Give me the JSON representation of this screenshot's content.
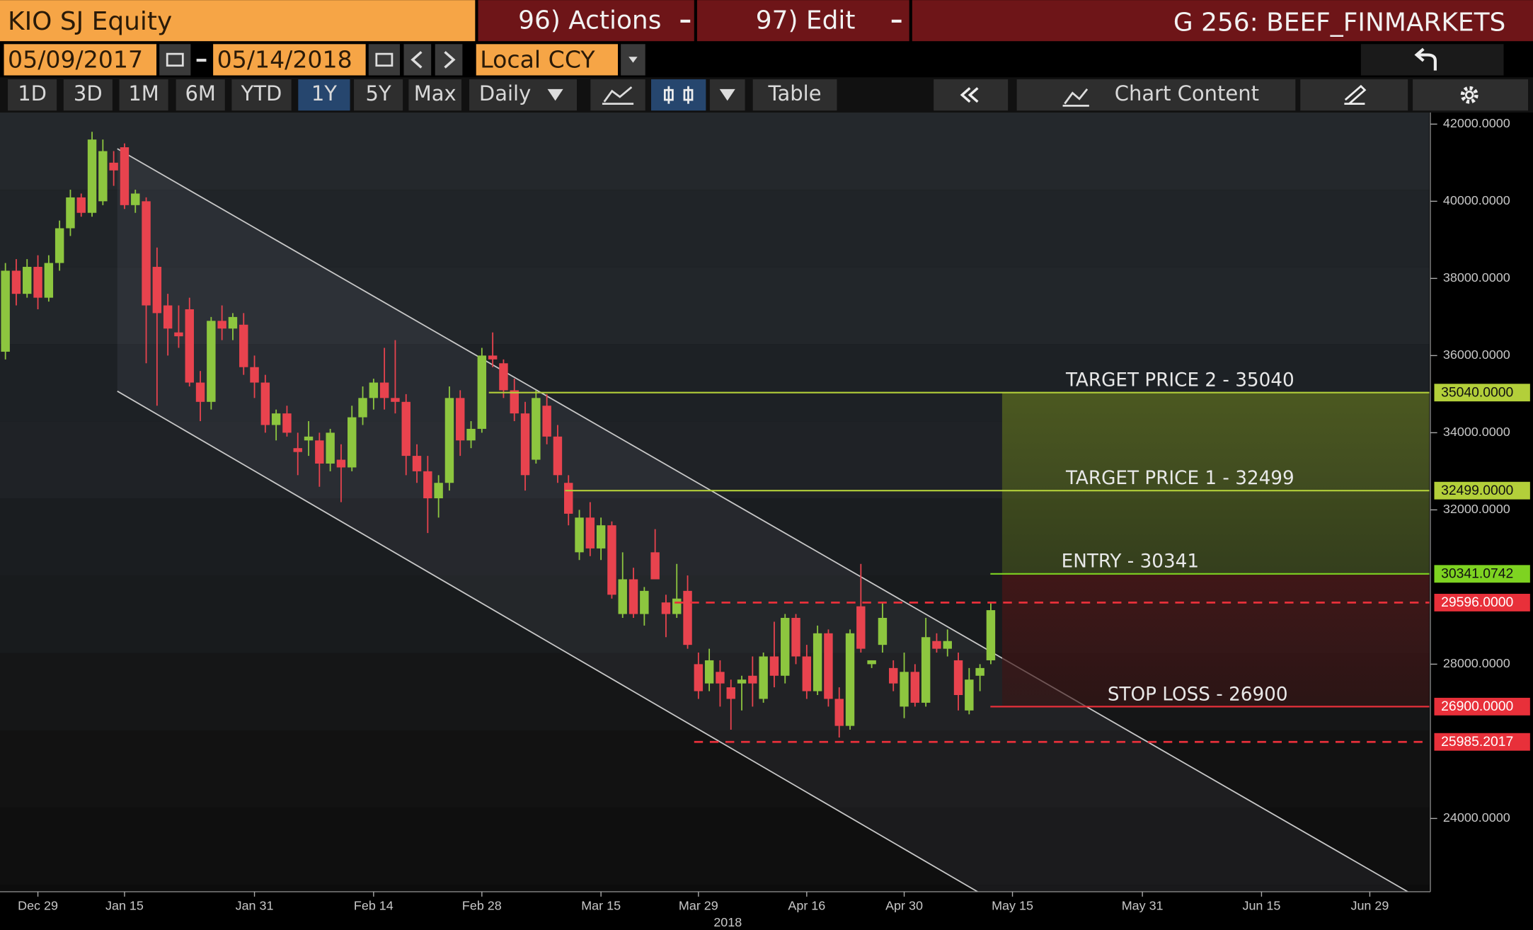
{
  "toolbar": {
    "security": "KIO SJ Equity",
    "actions": "96) Actions",
    "edit": "97) Edit",
    "page": "G 256: BEEF_FINMARKETS",
    "start_date": "05/09/2017",
    "end_date": "05/14/2018",
    "currency": "Local CCY",
    "periods": [
      "1D",
      "3D",
      "1M",
      "6M",
      "YTD",
      "1Y",
      "5Y",
      "Max"
    ],
    "selected_period": "1Y",
    "frequency": "Daily",
    "table": "Table",
    "chart_content": "Chart Content"
  },
  "chart_data": {
    "type": "candlestick",
    "categories": [
      null,
      null,
      null,
      "Dec 29",
      null,
      null,
      null,
      null,
      null,
      null,
      null,
      "Jan 15",
      null,
      null,
      null,
      null,
      null,
      null,
      null,
      null,
      null,
      null,
      null,
      "Jan 31",
      null,
      null,
      null,
      null,
      null,
      null,
      null,
      null,
      null,
      null,
      "Feb 14",
      null,
      null,
      null,
      null,
      null,
      null,
      null,
      null,
      null,
      "Feb 28",
      null,
      null,
      null,
      null,
      null,
      null,
      null,
      null,
      null,
      null,
      "Mar 15",
      null,
      null,
      null,
      null,
      null,
      null,
      null,
      null,
      "Mar 29",
      null,
      null,
      null,
      null,
      null,
      null,
      null,
      null,
      null,
      "Apr 16",
      null,
      null,
      null,
      null,
      null,
      null,
      null,
      null,
      "Apr 30",
      null,
      null,
      null,
      null,
      null,
      null,
      null,
      null,
      null,
      "May 15",
      null,
      null,
      null,
      null,
      null,
      null,
      null,
      null,
      null,
      null,
      null,
      "May 31",
      null,
      null,
      null,
      null,
      null,
      null,
      null,
      null,
      null,
      null,
      "Jun 15",
      null,
      null,
      null,
      null,
      null,
      null,
      null,
      null,
      null,
      "Jun 29",
      null,
      null,
      null,
      null,
      null
    ],
    "year_label": "2018",
    "open": [
      36100,
      38200,
      37600,
      38300,
      37500,
      38400,
      39300,
      40100,
      39700,
      40000,
      41000,
      41400,
      39900,
      40000,
      38300,
      37300,
      36600,
      37200,
      35300,
      34800,
      36900,
      36700,
      36800,
      35700,
      35300,
      34200,
      34500,
      33600,
      33800,
      33800,
      33200,
      33300,
      33100,
      34400,
      34900,
      35300,
      34900,
      34800,
      33400,
      33000,
      32300,
      32700,
      34900,
      33800,
      34100,
      36000,
      35800,
      35100,
      34500,
      33300,
      34700,
      33900,
      32700,
      30900,
      31800,
      31000,
      31600,
      29300,
      30200,
      29300,
      30900,
      29600,
      29300,
      29900,
      28000,
      27500,
      27800,
      27400,
      27500,
      27700,
      27100,
      28200,
      27700,
      29200,
      28200,
      27300,
      28800,
      27100,
      26400,
      29500,
      28000,
      28500,
      27900,
      26900,
      27800,
      27000,
      28600,
      28400,
      28100,
      26800,
      27700,
      28100,
      null,
      null,
      null,
      null,
      null,
      null,
      null,
      null,
      null,
      null,
      null,
      null,
      null,
      null,
      null,
      null,
      null,
      null,
      null,
      null,
      null,
      null,
      null,
      null,
      null,
      null,
      null,
      null,
      null,
      null,
      null,
      null,
      null,
      null,
      null,
      null,
      null,
      null,
      null,
      null
    ],
    "high": [
      38400,
      38500,
      38500,
      38600,
      38600,
      39500,
      40300,
      40200,
      41800,
      41600,
      41300,
      41500,
      40300,
      40100,
      38800,
      37600,
      37300,
      37500,
      35600,
      37000,
      37300,
      37100,
      37100,
      36000,
      35500,
      34600,
      34700,
      34000,
      34300,
      34000,
      34100,
      33700,
      34700,
      35200,
      35400,
      36200,
      36400,
      35000,
      33700,
      33400,
      32900,
      35200,
      35100,
      34300,
      36200,
      36600,
      35900,
      35400,
      34800,
      35100,
      35000,
      34200,
      32900,
      32000,
      32200,
      31800,
      31700,
      30900,
      30500,
      30000,
      31500,
      29800,
      30600,
      30300,
      28300,
      28400,
      28100,
      27600,
      27700,
      28200,
      28300,
      29100,
      29300,
      29300,
      28500,
      29000,
      28900,
      27400,
      28900,
      30600,
      28100,
      29600,
      28100,
      28300,
      28000,
      29200,
      28800,
      28900,
      28300,
      27900,
      28000,
      29600,
      null,
      null,
      null,
      null,
      null,
      null,
      null,
      null,
      null,
      null,
      null,
      null,
      null,
      null,
      null,
      null,
      null,
      null,
      null,
      null,
      null,
      null,
      null,
      null,
      null,
      null,
      null,
      null,
      null,
      null,
      null,
      null,
      null,
      null,
      null,
      null,
      null,
      null,
      null,
      null
    ],
    "low": [
      35900,
      37300,
      37500,
      37200,
      37400,
      38200,
      39100,
      39600,
      39600,
      39900,
      40400,
      39800,
      39700,
      35800,
      34700,
      36000,
      36200,
      35200,
      34300,
      34600,
      36400,
      36400,
      35500,
      34900,
      34000,
      33800,
      33900,
      32900,
      33400,
      32600,
      33000,
      32200,
      33000,
      34200,
      34600,
      34600,
      34500,
      32900,
      32700,
      31400,
      31800,
      32500,
      33400,
      33600,
      34000,
      35700,
      34900,
      34300,
      32500,
      33200,
      33700,
      32700,
      31600,
      30700,
      30800,
      30700,
      29700,
      29200,
      29200,
      29000,
      30200,
      28700,
      29200,
      28400,
      27100,
      27300,
      26900,
      26300,
      26800,
      26900,
      27000,
      27400,
      27500,
      28000,
      27100,
      27200,
      26900,
      26100,
      26300,
      28300,
      27900,
      28300,
      27300,
      26600,
      26900,
      26900,
      28300,
      28200,
      26800,
      26700,
      27300,
      28000,
      null,
      null,
      null,
      null,
      null,
      null,
      null,
      null,
      null,
      null,
      null,
      null,
      null,
      null,
      null,
      null,
      null,
      null,
      null,
      null,
      null,
      null,
      null,
      null,
      null,
      null,
      null,
      null,
      null,
      null,
      null,
      null,
      null,
      null,
      null,
      null,
      null,
      null,
      null,
      null
    ],
    "close": [
      38200,
      37600,
      38300,
      37500,
      38400,
      39300,
      40100,
      39700,
      41600,
      41300,
      40800,
      39900,
      40200,
      37300,
      37100,
      36700,
      36500,
      35300,
      34800,
      36900,
      36700,
      37000,
      35700,
      35300,
      34200,
      34500,
      34000,
      33500,
      33900,
      33200,
      34000,
      33100,
      34400,
      34900,
      35300,
      34900,
      34800,
      33400,
      33000,
      32300,
      32700,
      34900,
      33800,
      34100,
      36000,
      35900,
      35100,
      34500,
      32900,
      34900,
      33900,
      32900,
      31900,
      31800,
      31000,
      31600,
      29800,
      30200,
      29300,
      29900,
      30200,
      29300,
      29700,
      28500,
      27300,
      28100,
      27500,
      27100,
      27600,
      27500,
      28200,
      27700,
      29200,
      28200,
      27300,
      28800,
      27100,
      26400,
      28800,
      28400,
      28100,
      29200,
      27500,
      27800,
      27000,
      28700,
      28400,
      28600,
      27200,
      27600,
      27900,
      29400,
      null,
      null,
      null,
      null,
      null,
      null,
      null,
      null,
      null,
      null,
      null,
      null,
      null,
      null,
      null,
      null,
      null,
      null,
      null,
      null,
      null,
      null,
      null,
      null,
      null,
      null,
      null,
      null,
      null,
      null,
      null,
      null,
      null,
      null,
      null,
      null,
      null,
      null,
      null,
      null
    ],
    "up_color": "#8dc63f",
    "down_color": "#e8434e",
    "ylim": [
      22100,
      42300
    ],
    "yticks": [
      {
        "value": 24000,
        "label": "24000.0000"
      },
      {
        "value": 28000,
        "label": "28000.0000"
      },
      {
        "value": 32000,
        "label": "32000.0000"
      },
      {
        "value": 34000,
        "label": "34000.0000"
      },
      {
        "value": 36000,
        "label": "36000.0000"
      },
      {
        "value": 38000,
        "label": "38000.0000"
      },
      {
        "value": 40000,
        "label": "40000.0000"
      },
      {
        "value": 42000,
        "label": "42000.0000"
      }
    ],
    "levels": [
      {
        "label": "TARGET PRICE 2 - 35040",
        "value": 35040,
        "value_label": "35040.0000",
        "color": "#b3cf3a",
        "dashed": false
      },
      {
        "label": "TARGET PRICE 1 - 32499",
        "value": 32499,
        "value_label": "32499.0000",
        "color": "#b3cf3a",
        "dashed": false
      },
      {
        "label": "ENTRY - 30341",
        "value": 30341.0742,
        "value_label": "30341.0742",
        "color": "#7ed321",
        "dashed": false
      },
      {
        "value": 29596,
        "value_label": "29596.0000",
        "color": "#e8303a",
        "dashed": true
      },
      {
        "label": "STOP LOSS - 26900",
        "value": 26900,
        "value_label": "26900.0000",
        "color": "#e8303a",
        "dashed": false
      },
      {
        "value": 25985.2017,
        "value_label": "25985.2017",
        "color": "#e8303a",
        "dashed": true
      }
    ]
  }
}
